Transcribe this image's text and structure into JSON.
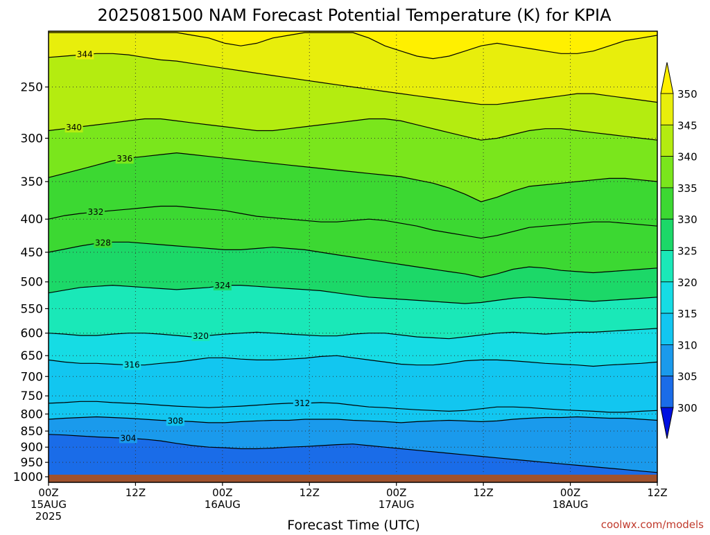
{
  "chart_data": {
    "type": "heatmap",
    "title": "2025081500 NAM Forecast Potential Temperature (K) for KPIA",
    "xlabel": "Forecast Time (UTC)",
    "ylabel": "",
    "credit": "coolwx.com/models",
    "x_ticks": [
      {
        "hours": 0,
        "lines": [
          "00Z",
          "15AUG",
          "2025"
        ]
      },
      {
        "hours": 12,
        "lines": [
          "12Z"
        ]
      },
      {
        "hours": 24,
        "lines": [
          "00Z",
          "16AUG"
        ]
      },
      {
        "hours": 36,
        "lines": [
          "12Z"
        ]
      },
      {
        "hours": 48,
        "lines": [
          "00Z",
          "17AUG"
        ]
      },
      {
        "hours": 60,
        "lines": [
          "12Z"
        ]
      },
      {
        "hours": 72,
        "lines": [
          "00Z",
          "18AUG"
        ]
      },
      {
        "hours": 84,
        "lines": [
          "12Z"
        ]
      }
    ],
    "xlim_hours": [
      0,
      84
    ],
    "y_ticks": [
      250,
      300,
      350,
      400,
      450,
      500,
      550,
      600,
      650,
      700,
      750,
      800,
      850,
      900,
      950,
      1000
    ],
    "ylim_hPa": [
      1020,
      205
    ],
    "y_scale": "log",
    "y_inverted": true,
    "grid": true,
    "colorbar": {
      "placement": "right",
      "labels": [
        "300",
        "305",
        "310",
        "315",
        "320",
        "325",
        "330",
        "335",
        "340",
        "345",
        "350"
      ],
      "levels": [
        300,
        305,
        310,
        315,
        320,
        325,
        330,
        335,
        340,
        345,
        350
      ],
      "colors": [
        "#1e3ee8",
        "#1a6ce8",
        "#1a9aec",
        "#12c6f0",
        "#16dce4",
        "#1ae8b8",
        "#1cd868",
        "#3cd832",
        "#7ae61c",
        "#b4ec10",
        "#e8ee0c",
        "#fff000"
      ]
    },
    "terrain_hPa": 1000,
    "terrain_color": "#a0522d",
    "series": [
      {
        "name": "",
        "level": 304,
        "label": "304",
        "label_hours": 11,
        "values": [
          860,
          862,
          865,
          868,
          870,
          872,
          875,
          880,
          888,
          895,
          900,
          902,
          905,
          905,
          903,
          900,
          898,
          895,
          892,
          890,
          895,
          900,
          905,
          910,
          915,
          920,
          925,
          930,
          935,
          940,
          945,
          950,
          955,
          960,
          965,
          970,
          975,
          980,
          985
        ]
      },
      {
        "name": "",
        "level": 308,
        "label": "308",
        "label_hours": 17.5,
        "values": [
          815,
          812,
          810,
          808,
          810,
          812,
          815,
          818,
          820,
          822,
          825,
          825,
          822,
          820,
          818,
          818,
          815,
          815,
          815,
          818,
          820,
          822,
          825,
          822,
          820,
          818,
          820,
          822,
          820,
          815,
          812,
          810,
          810,
          808,
          810,
          812,
          812,
          815,
          818
        ]
      },
      {
        "name": "",
        "level": 312,
        "label": "312",
        "label_hours": 35,
        "values": [
          770,
          768,
          765,
          765,
          768,
          770,
          772,
          775,
          778,
          780,
          782,
          780,
          778,
          775,
          772,
          770,
          770,
          768,
          770,
          775,
          780,
          782,
          785,
          788,
          790,
          792,
          790,
          785,
          780,
          780,
          782,
          785,
          788,
          790,
          792,
          795,
          795,
          792,
          790
        ]
      },
      {
        "name": "",
        "level": 316,
        "label": "316",
        "label_hours": 11.5,
        "values": [
          660,
          665,
          668,
          668,
          670,
          672,
          672,
          668,
          665,
          660,
          655,
          655,
          658,
          660,
          660,
          658,
          656,
          652,
          650,
          655,
          660,
          665,
          670,
          672,
          672,
          668,
          662,
          660,
          660,
          662,
          665,
          668,
          670,
          672,
          675,
          672,
          670,
          668,
          665
        ]
      },
      {
        "name": "",
        "level": 320,
        "label": "320",
        "label_hours": 21,
        "values": [
          600,
          602,
          605,
          605,
          602,
          600,
          600,
          602,
          605,
          608,
          605,
          602,
          600,
          598,
          600,
          602,
          604,
          606,
          606,
          602,
          600,
          600,
          604,
          608,
          610,
          612,
          608,
          604,
          600,
          598,
          600,
          602,
          600,
          598,
          598,
          596,
          594,
          592,
          590
        ]
      },
      {
        "name": "",
        "level": 324,
        "label": "324",
        "label_hours": 24,
        "values": [
          520,
          515,
          510,
          508,
          506,
          508,
          510,
          512,
          514,
          512,
          510,
          506,
          506,
          508,
          510,
          512,
          514,
          516,
          520,
          524,
          528,
          530,
          532,
          534,
          536,
          538,
          540,
          538,
          534,
          530,
          528,
          530,
          532,
          534,
          536,
          534,
          532,
          530,
          528
        ]
      },
      {
        "name": "",
        "level": 328,
        "label": "328",
        "label_hours": 7.5,
        "values": [
          450,
          445,
          440,
          436,
          434,
          434,
          436,
          438,
          440,
          442,
          444,
          446,
          446,
          444,
          442,
          444,
          446,
          450,
          454,
          458,
          462,
          466,
          470,
          474,
          478,
          482,
          486,
          492,
          486,
          478,
          474,
          476,
          480,
          482,
          484,
          482,
          480,
          478,
          476
        ]
      },
      {
        "name": "",
        "level": 332,
        "label": "332",
        "label_hours": 6.5,
        "values": [
          400,
          395,
          392,
          390,
          388,
          386,
          384,
          382,
          382,
          384,
          386,
          388,
          392,
          396,
          398,
          400,
          402,
          404,
          404,
          402,
          400,
          402,
          406,
          410,
          416,
          420,
          424,
          428,
          424,
          418,
          412,
          410,
          408,
          406,
          404,
          404,
          406,
          408,
          410
        ]
      },
      {
        "name": "",
        "level": 336,
        "label": "336",
        "label_hours": 10.5,
        "values": [
          345,
          340,
          335,
          330,
          325,
          322,
          320,
          318,
          316,
          318,
          320,
          322,
          324,
          326,
          328,
          330,
          332,
          334,
          336,
          338,
          340,
          342,
          344,
          348,
          352,
          358,
          366,
          376,
          370,
          362,
          356,
          354,
          352,
          350,
          348,
          346,
          346,
          348,
          350
        ]
      },
      {
        "name": "",
        "level": 340,
        "label": "340",
        "label_hours": 3.5,
        "values": [
          292,
          290,
          288,
          286,
          284,
          282,
          280,
          280,
          282,
          284,
          286,
          288,
          290,
          292,
          292,
          290,
          288,
          286,
          284,
          282,
          280,
          280,
          282,
          286,
          290,
          294,
          298,
          302,
          300,
          296,
          292,
          290,
          290,
          292,
          294,
          296,
          298,
          300,
          302
        ]
      },
      {
        "name": "",
        "level": 344,
        "label": "344",
        "label_hours": 5,
        "values": [
          225,
          224,
          223,
          222,
          222,
          223,
          225,
          227,
          228,
          230,
          232,
          234,
          236,
          238,
          240,
          242,
          244,
          246,
          248,
          250,
          252,
          254,
          256,
          258,
          260,
          262,
          264,
          266,
          266,
          264,
          262,
          260,
          258,
          256,
          256,
          258,
          260,
          262,
          264
        ]
      },
      {
        "name": "",
        "level": 348,
        "label": "",
        "label_hours": 0,
        "values": [
          206,
          206,
          206,
          206,
          206,
          206,
          206,
          206,
          206,
          208,
          210,
          214,
          216,
          214,
          210,
          208,
          206,
          206,
          206,
          206,
          210,
          216,
          220,
          224,
          226,
          224,
          220,
          216,
          214,
          216,
          218,
          220,
          222,
          222,
          220,
          216,
          212,
          210,
          208
        ]
      }
    ]
  }
}
